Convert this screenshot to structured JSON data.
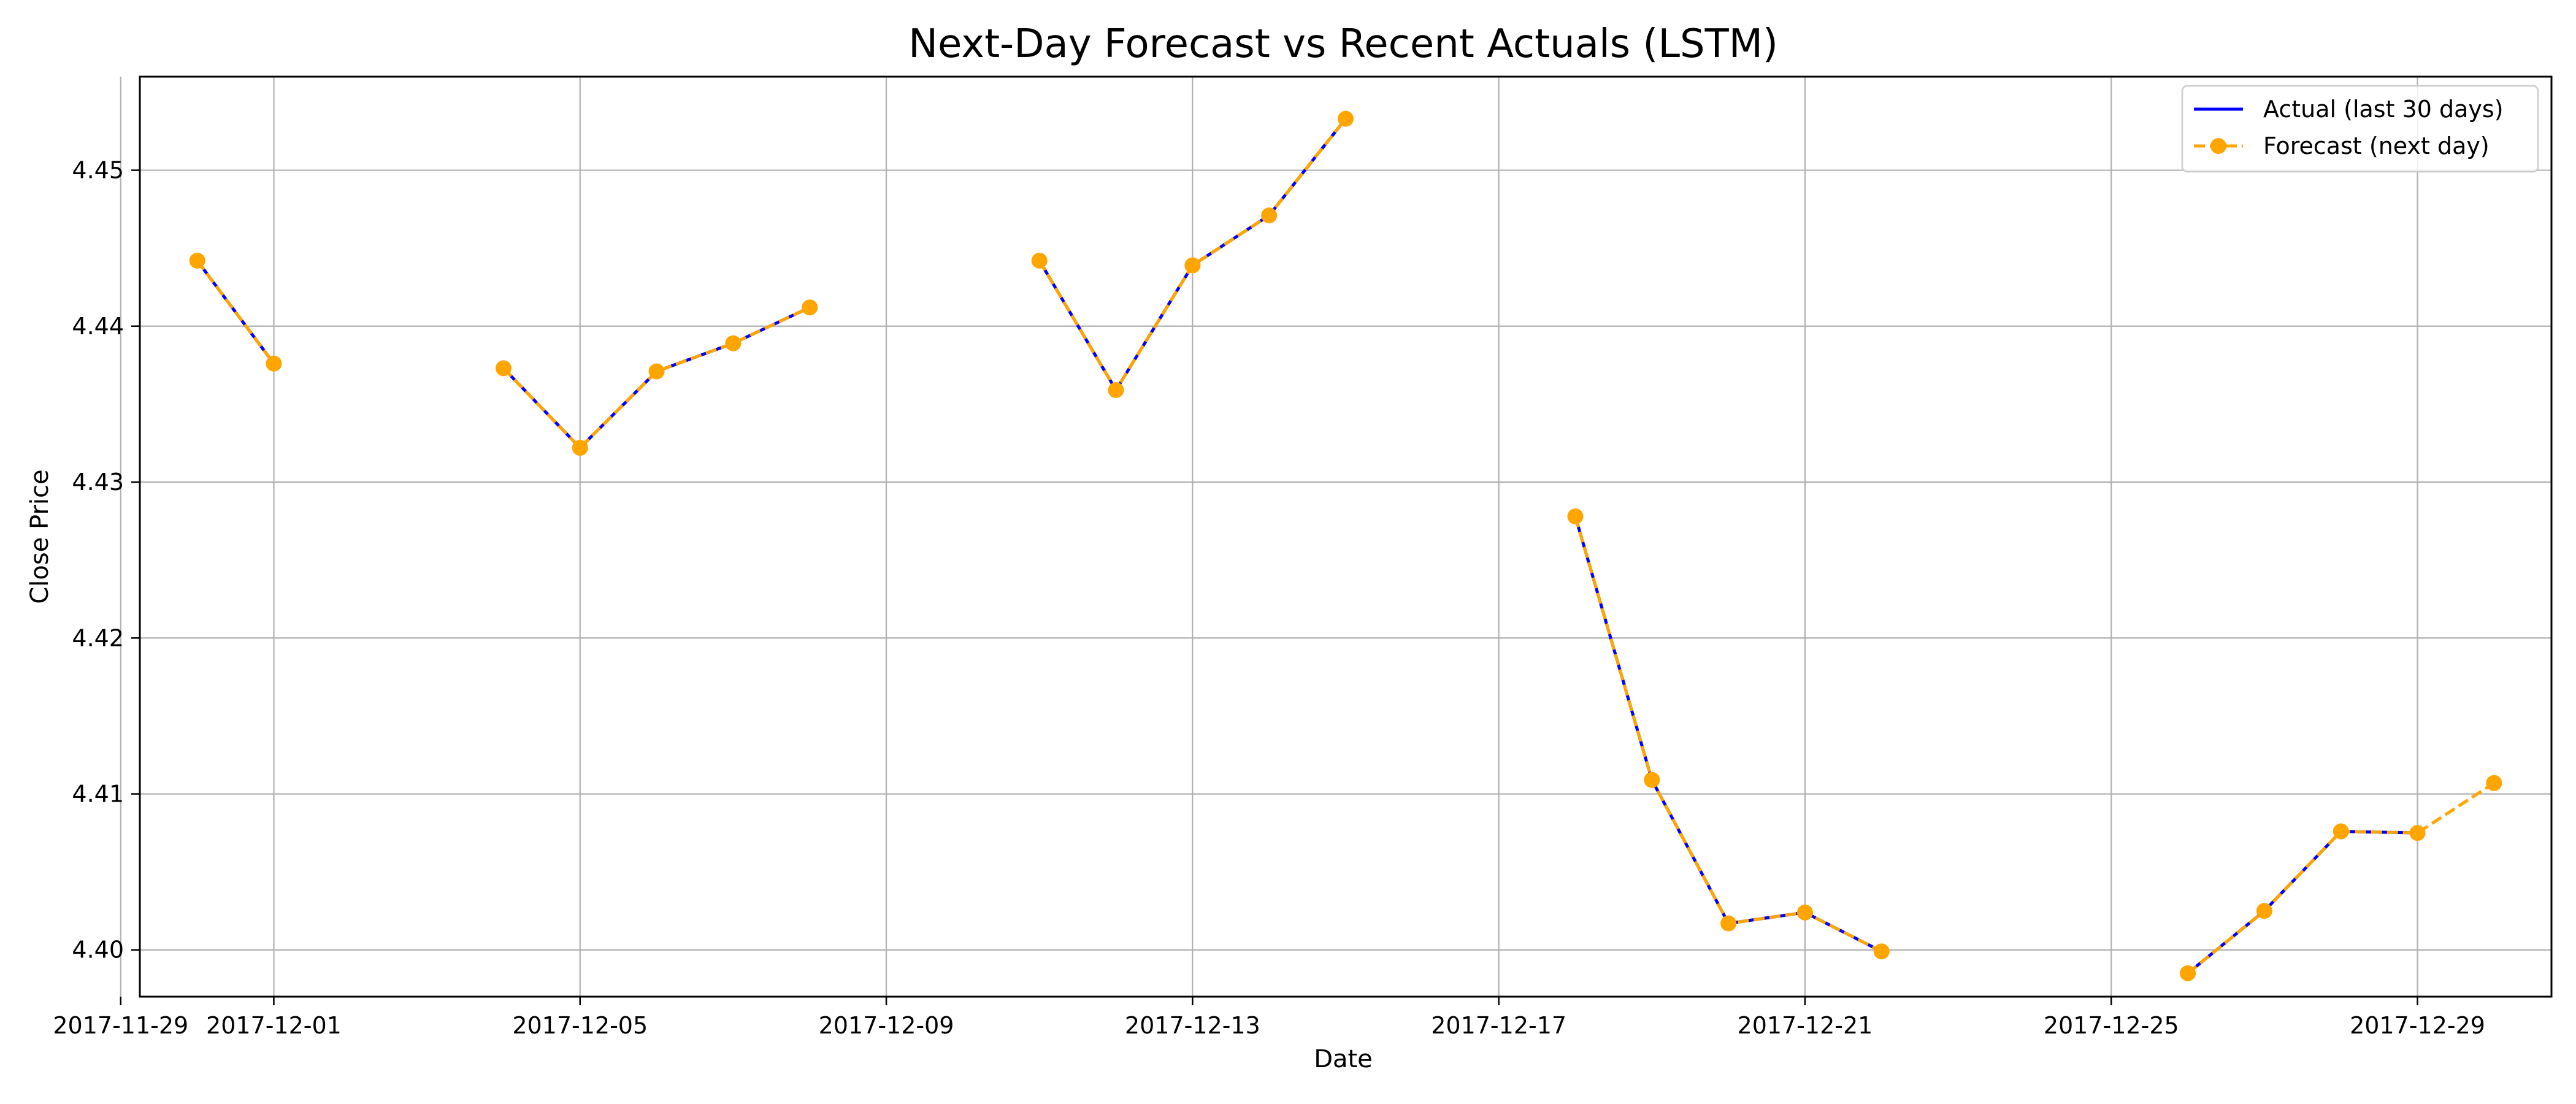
{
  "chart_data": {
    "type": "line",
    "title": "Next-Day Forecast vs Recent Actuals (LSTM)",
    "xlabel": "Date",
    "ylabel": "Close Price",
    "grid": true,
    "legend_position": "top-right",
    "xlim": [
      "2017-11-29",
      "2017-12-31"
    ],
    "ylim": [
      4.397,
      4.456
    ],
    "x_ticks": [
      "2017-11-29",
      "2017-12-01",
      "2017-12-05",
      "2017-12-09",
      "2017-12-13",
      "2017-12-17",
      "2017-12-21",
      "2017-12-25",
      "2017-12-29"
    ],
    "y_ticks": [
      "4.40",
      "4.41",
      "4.42",
      "4.43",
      "4.44",
      "4.45"
    ],
    "series": [
      {
        "name": "Actual (last 30 days)",
        "color": "#0000ff",
        "line_style": "solid",
        "marker": "none",
        "x": [
          "2017-11-30",
          "2017-12-01",
          null,
          "2017-12-04",
          "2017-12-05",
          "2017-12-06",
          "2017-12-07",
          "2017-12-08",
          null,
          "2017-12-11",
          "2017-12-12",
          "2017-12-13",
          "2017-12-14",
          "2017-12-15",
          null,
          "2017-12-18",
          "2017-12-19",
          "2017-12-20",
          "2017-12-21",
          "2017-12-22",
          null,
          "2017-12-26",
          "2017-12-27",
          "2017-12-28",
          "2017-12-29"
        ],
        "y": [
          4.4442,
          4.4376,
          null,
          4.4373,
          4.4322,
          4.4371,
          4.4389,
          4.4412,
          null,
          4.4442,
          4.4359,
          4.4439,
          4.4471,
          4.4533,
          null,
          4.4278,
          4.4109,
          4.4017,
          4.4024,
          4.3999,
          null,
          4.3985,
          4.4025,
          4.4076,
          4.4075
        ]
      },
      {
        "name": "Forecast (next day)",
        "color": "#ffa500",
        "line_style": "dashed",
        "marker": "circle",
        "x": [
          "2017-11-30",
          "2017-12-01",
          null,
          "2017-12-04",
          "2017-12-05",
          "2017-12-06",
          "2017-12-07",
          "2017-12-08",
          null,
          "2017-12-11",
          "2017-12-12",
          "2017-12-13",
          "2017-12-14",
          "2017-12-15",
          null,
          "2017-12-18",
          "2017-12-19",
          "2017-12-20",
          "2017-12-21",
          "2017-12-22",
          null,
          "2017-12-26",
          "2017-12-27",
          "2017-12-28",
          "2017-12-29",
          "2017-12-30"
        ],
        "y": [
          4.4442,
          4.4376,
          null,
          4.4373,
          4.4322,
          4.4371,
          4.4389,
          4.4412,
          null,
          4.4442,
          4.4359,
          4.4439,
          4.4471,
          4.4533,
          null,
          4.4278,
          4.4109,
          4.4017,
          4.4024,
          4.3999,
          null,
          4.3985,
          4.4025,
          4.4076,
          4.4075,
          4.4107
        ]
      }
    ]
  }
}
